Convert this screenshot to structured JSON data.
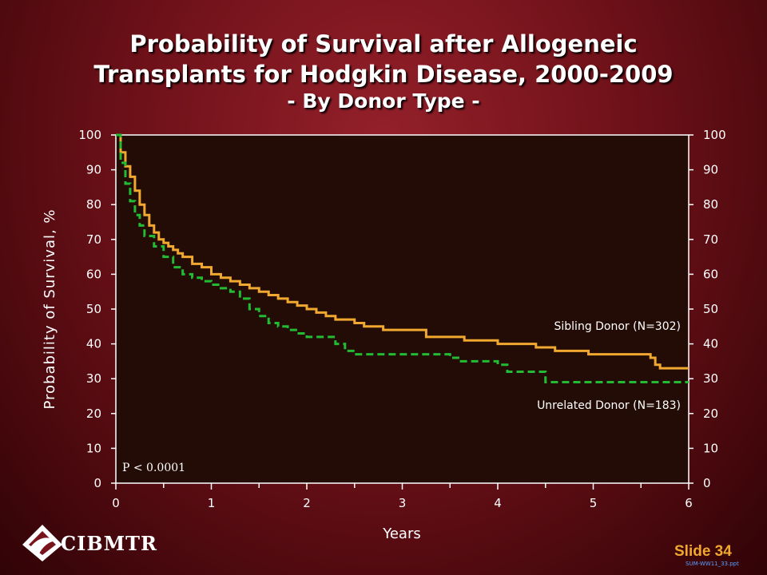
{
  "slide": {
    "title_line1": "Probability of Survival after Allogeneic",
    "title_line2": "Transplants for Hodgkin Disease, 2000-2009",
    "subtitle": "- By Donor Type -",
    "slide_number": "Slide 34",
    "file_code": "SUM-WW11_33.ppt",
    "logo_text": "CIBMTR",
    "colors": {
      "background": "#7a141c",
      "plot_bg": "#230c05"
    }
  },
  "chart_data": {
    "type": "line",
    "title": "Probability of Survival after Allogeneic Transplants for Hodgkin Disease, 2000-2009 - By Donor Type -",
    "xlabel": "Years",
    "ylabel": "Probability of Survival, %",
    "xlim": [
      0,
      6
    ],
    "ylim": [
      0,
      100
    ],
    "xticks": [
      0,
      1,
      2,
      3,
      4,
      5,
      6
    ],
    "yticks": [
      0,
      10,
      20,
      30,
      40,
      50,
      60,
      70,
      80,
      90,
      100
    ],
    "secondary_y_axis": true,
    "grid": false,
    "annotation": "P < 0.0001",
    "series": [
      {
        "name": "Sibling Donor (N=302)",
        "color": "#f0a830",
        "style": "solid",
        "step": true,
        "x": [
          0,
          0.05,
          0.1,
          0.15,
          0.2,
          0.25,
          0.3,
          0.35,
          0.4,
          0.45,
          0.5,
          0.55,
          0.6,
          0.65,
          0.7,
          0.8,
          0.9,
          1.0,
          1.1,
          1.2,
          1.3,
          1.4,
          1.5,
          1.6,
          1.7,
          1.8,
          1.9,
          2.0,
          2.1,
          2.2,
          2.3,
          2.4,
          2.5,
          2.6,
          2.8,
          3.0,
          3.25,
          3.6,
          3.65,
          3.7,
          4.0,
          4.2,
          4.4,
          4.6,
          4.95,
          5.6,
          5.65,
          5.7,
          6.0
        ],
        "y": [
          100,
          95,
          91,
          88,
          84,
          80,
          77,
          74,
          72,
          70,
          69,
          68,
          67,
          66,
          65,
          63,
          62,
          60,
          59,
          58,
          57,
          56,
          55,
          54,
          53,
          52,
          51,
          50,
          49,
          48,
          47,
          47,
          46,
          45,
          44,
          44,
          42,
          42,
          41,
          41,
          40,
          40,
          39,
          38,
          37,
          36,
          34,
          33,
          33
        ]
      },
      {
        "name": "Unrelated Donor (N=183)",
        "color": "#22bb33",
        "style": "dashed",
        "step": true,
        "x": [
          0,
          0.05,
          0.1,
          0.15,
          0.2,
          0.25,
          0.3,
          0.4,
          0.5,
          0.6,
          0.7,
          0.8,
          0.9,
          1.0,
          1.1,
          1.2,
          1.3,
          1.4,
          1.5,
          1.6,
          1.7,
          1.8,
          1.9,
          2.0,
          2.2,
          2.3,
          2.4,
          2.5,
          3.0,
          3.4,
          3.5,
          3.6,
          4.0,
          4.1,
          4.5,
          6.0
        ],
        "y": [
          100,
          92,
          86,
          81,
          77,
          74,
          71,
          68,
          65,
          62,
          60,
          59,
          58,
          57,
          56,
          55,
          53,
          50,
          48,
          46,
          45,
          44,
          43,
          42,
          42,
          40,
          38,
          37,
          37,
          37,
          36,
          35,
          34,
          32,
          29,
          29
        ]
      }
    ],
    "series_labels": [
      "Sibling Donor (N=302)",
      "Unrelated Donor (N=183)"
    ]
  }
}
